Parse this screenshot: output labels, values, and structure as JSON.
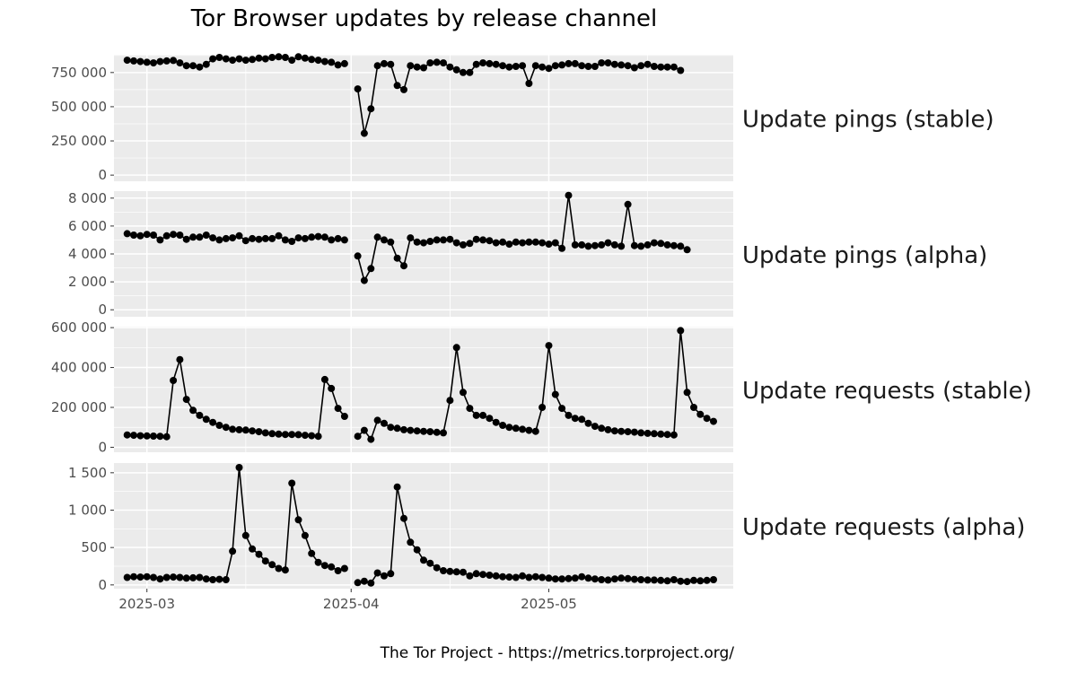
{
  "chart_data": {
    "type": "line",
    "title": "Tor Browser updates by release channel",
    "caption": "The Tor Project - https://metrics.torproject.org/",
    "x_ticks": [
      "2025-03",
      "2025-04",
      "2025-05"
    ],
    "x_range": [
      "2025-02-24",
      "2025-05-29"
    ],
    "series": [
      {
        "name": "Update pings (stable)",
        "y_ticks": [
          0,
          250000,
          500000,
          750000
        ],
        "y_tick_labels": [
          "0",
          "250 000",
          "500 000",
          "750 000"
        ],
        "ylim": [
          -45000,
          880000
        ],
        "segments": [
          {
            "start": "2025-02-26",
            "values": [
              840000,
              835000,
              830000,
              825000,
              820000,
              830000,
              835000,
              838000,
              820000,
              800000,
              800000,
              790000,
              810000,
              850000,
              860000,
              850000,
              840000,
              850000,
              840000,
              845000,
              855000,
              850000,
              860000,
              865000,
              860000,
              840000,
              865000,
              855000,
              845000,
              840000,
              830000,
              825000,
              805000,
              815000
            ]
          },
          {
            "start": "2025-04-02",
            "values": [
              630000,
              305000,
              485000,
              800000,
              815000,
              810000,
              655000,
              625000,
              800000,
              790000,
              785000,
              820000,
              825000,
              820000,
              790000,
              770000,
              750000,
              750000,
              810000,
              820000,
              815000,
              810000,
              800000,
              790000,
              795000,
              800000,
              670000,
              800000,
              790000,
              780000,
              800000,
              805000,
              815000,
              815000,
              800000,
              795000,
              795000,
              820000,
              820000,
              810000,
              805000,
              800000,
              785000,
              800000,
              810000,
              795000,
              790000,
              790000,
              790000,
              765000
            ]
          }
        ]
      },
      {
        "name": "Update pings (alpha)",
        "y_ticks": [
          0,
          2000,
          4000,
          6000,
          8000
        ],
        "y_tick_labels": [
          "0",
          "2 000",
          "4 000",
          "6 000",
          "8 000"
        ],
        "ylim": [
          -500,
          8500
        ],
        "segments": [
          {
            "start": "2025-02-26",
            "values": [
              5450,
              5350,
              5300,
              5400,
              5350,
              5000,
              5300,
              5400,
              5350,
              5050,
              5200,
              5200,
              5350,
              5150,
              5000,
              5100,
              5150,
              5300,
              4950,
              5100,
              5050,
              5100,
              5100,
              5300,
              5000,
              4900,
              5150,
              5100,
              5200,
              5250,
              5200,
              5000,
              5100,
              5000
            ]
          },
          {
            "start": "2025-04-02",
            "values": [
              3850,
              2100,
              2950,
              5200,
              5000,
              4850,
              3700,
              3150,
              5150,
              4850,
              4800,
              4900,
              5000,
              5000,
              5050,
              4800,
              4650,
              4750,
              5050,
              5000,
              4950,
              4800,
              4850,
              4700,
              4850,
              4800,
              4850,
              4850,
              4800,
              4700,
              4800,
              4400,
              8200,
              4650,
              4650,
              4550,
              4600,
              4650,
              4800,
              4650,
              4550,
              7550,
              4600,
              4550,
              4650,
              4800,
              4750,
              4650,
              4600,
              4550,
              4300
            ]
          }
        ]
      },
      {
        "name": "Update requests (stable)",
        "y_ticks": [
          0,
          200000,
          400000,
          600000
        ],
        "y_tick_labels": [
          "0",
          "200 000",
          "400 000",
          "600 000"
        ],
        "ylim": [
          -25000,
          605000
        ],
        "segments": [
          {
            "start": "2025-02-26",
            "values": [
              62000,
              60000,
              58000,
              57000,
              56000,
              55000,
              53000,
              335000,
              440000,
              240000,
              185000,
              160000,
              140000,
              125000,
              110000,
              100000,
              90000,
              88000,
              86000,
              82000,
              78000,
              72000,
              68000,
              66000,
              64000,
              64000,
              63000,
              60000,
              58000,
              55000,
              340000,
              295000,
              195000,
              155000
            ]
          },
          {
            "start": "2025-04-02",
            "values": [
              55000,
              85000,
              40000,
              135000,
              120000,
              100000,
              95000,
              88000,
              85000,
              82000,
              80000,
              78000,
              75000,
              72000,
              235000,
              500000,
              275000,
              195000,
              160000,
              160000,
              145000,
              125000,
              110000,
              100000,
              95000,
              90000,
              85000,
              80000,
              200000,
              510000,
              265000,
              195000,
              160000,
              145000,
              140000,
              120000,
              105000,
              95000,
              88000,
              82000,
              80000,
              78000,
              76000,
              72000,
              70000,
              68000,
              66000,
              64000,
              62000,
              585000,
              275000,
              200000,
              165000,
              145000,
              130000
            ]
          }
        ]
      },
      {
        "name": "Update requests (alpha)",
        "y_ticks": [
          0,
          500,
          1000,
          1500
        ],
        "y_tick_labels": [
          "0",
          "500",
          "1 000",
          "1 500"
        ],
        "ylim": [
          -50,
          1630
        ],
        "segments": [
          {
            "start": "2025-02-26",
            "values": [
              100,
              110,
              105,
              110,
              100,
              80,
              100,
              105,
              100,
              90,
              95,
              100,
              80,
              70,
              75,
              70,
              450,
              1570,
              660,
              480,
              410,
              320,
              270,
              220,
              200,
              1360,
              870,
              660,
              420,
              300,
              260,
              240,
              190,
              220
            ]
          },
          {
            "start": "2025-04-02",
            "values": [
              30,
              50,
              25,
              160,
              120,
              150,
              1310,
              890,
              570,
              470,
              330,
              290,
              230,
              190,
              180,
              175,
              170,
              120,
              150,
              140,
              130,
              120,
              110,
              105,
              100,
              120,
              100,
              110,
              100,
              90,
              80,
              80,
              85,
              90,
              110,
              90,
              80,
              70,
              65,
              80,
              90,
              85,
              75,
              70,
              65,
              65,
              60,
              55,
              70,
              50,
              45,
              60,
              55,
              60,
              70
            ]
          }
        ]
      }
    ],
    "grid": true,
    "panel_background": "#ebebeb",
    "line_color": "#000000",
    "point_color": "#000000"
  }
}
